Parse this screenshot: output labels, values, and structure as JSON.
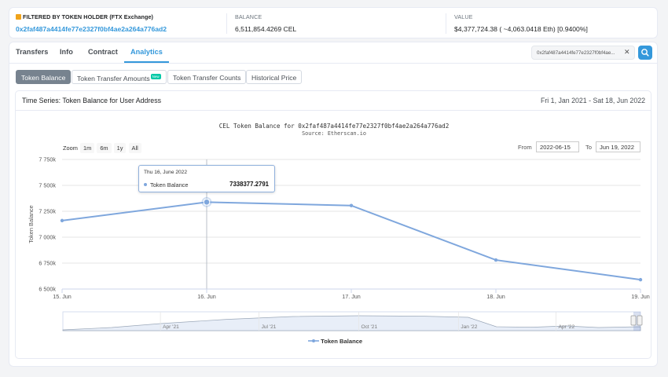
{
  "summary": {
    "filter_label": "FILTERED BY TOKEN HOLDER (FTX Exchange)",
    "address": "0x2faf487a4414fe77e2327f0bf4ae2a264a776ad2",
    "balance_label": "BALANCE",
    "balance_value": "6,511,854.4269 CEL",
    "value_label": "VALUE",
    "value_value": "$4,377,724.38 ( ~4,063.0418 Eth) [0.9400%]"
  },
  "tabs": [
    {
      "label": "Transfers"
    },
    {
      "label": "Info"
    },
    {
      "label": "Contract"
    },
    {
      "label": "Analytics"
    }
  ],
  "active_tab": "Analytics",
  "search": {
    "value": "0x2faf487a4414fe77e2327f0bf4ae..."
  },
  "subtabs": [
    {
      "label": "Token Balance"
    },
    {
      "label": "Token Transfer Amounts",
      "badge": "New"
    },
    {
      "label": "Token Transfer Counts"
    },
    {
      "label": "Historical Price"
    }
  ],
  "panel": {
    "title": "Time Series: Token Balance for User Address",
    "range": "Fri 1, Jan 2021 - Sat 18, Jun 2022"
  },
  "controls": {
    "zoom_label": "Zoom",
    "zoom_buttons": [
      "1m",
      "6m",
      "1y",
      "All"
    ],
    "from_label": "From",
    "from_value": "2022-06-15",
    "to_label": "To",
    "to_value": "Jun 19, 2022"
  },
  "tooltip": {
    "date": "Thu 16, June 2022",
    "series": "Token Balance",
    "value": "7338377.2791"
  },
  "colors": {
    "accent": "#3498db",
    "series": "#7fa7dd",
    "active_subtab": "#77838f"
  },
  "chart_data": {
    "type": "line",
    "title": "CEL Token Balance for 0x2faf487a4414fe77e2327f0bf4ae2a264a776ad2",
    "subtitle": "Source: Etherscan.io",
    "ylabel": "Token Balance",
    "xlabel": "",
    "ylim": [
      6500000,
      7750000
    ],
    "y_ticks": [
      "7 750k",
      "7 500k",
      "7 250k",
      "7 000k",
      "6 750k",
      "6 500k"
    ],
    "y_tick_values": [
      7750000,
      7500000,
      7250000,
      7000000,
      6750000,
      6500000
    ],
    "x_ticks": [
      "15. Jun",
      "16. Jun",
      "17. Jun",
      "18. Jun",
      "19. Jun"
    ],
    "x_range": [
      "2022-06-15",
      "2022-06-19"
    ],
    "grid": true,
    "legend": "bottom-center",
    "series": [
      {
        "name": "Token Balance",
        "points": [
          {
            "x": "2022-06-15",
            "y": 7160000
          },
          {
            "x": "2022-06-16",
            "y": 7338377.2791
          },
          {
            "x": "2022-06-17",
            "y": 7305000
          },
          {
            "x": "2022-06-18",
            "y": 6780000
          },
          {
            "x": "2022-06-19",
            "y": 6590000
          }
        ]
      }
    ],
    "navigator_ticks": [
      "Apr '21",
      "Jul '21",
      "Oct '21",
      "Jan '22",
      "Apr '22"
    ],
    "navigator_series": [
      {
        "x": "2021-01-01",
        "y": 0.05
      },
      {
        "x": "2021-02-15",
        "y": 0.2
      },
      {
        "x": "2021-04-01",
        "y": 0.45
      },
      {
        "x": "2021-06-01",
        "y": 0.72
      },
      {
        "x": "2021-08-01",
        "y": 0.9
      },
      {
        "x": "2021-10-01",
        "y": 0.95
      },
      {
        "x": "2021-12-01",
        "y": 0.92
      },
      {
        "x": "2022-01-10",
        "y": 0.85
      },
      {
        "x": "2022-02-05",
        "y": 0.25
      },
      {
        "x": "2022-03-10",
        "y": 0.22
      },
      {
        "x": "2022-04-10",
        "y": 0.3
      },
      {
        "x": "2022-05-10",
        "y": 0.2
      },
      {
        "x": "2022-06-18",
        "y": 0.25
      }
    ]
  }
}
